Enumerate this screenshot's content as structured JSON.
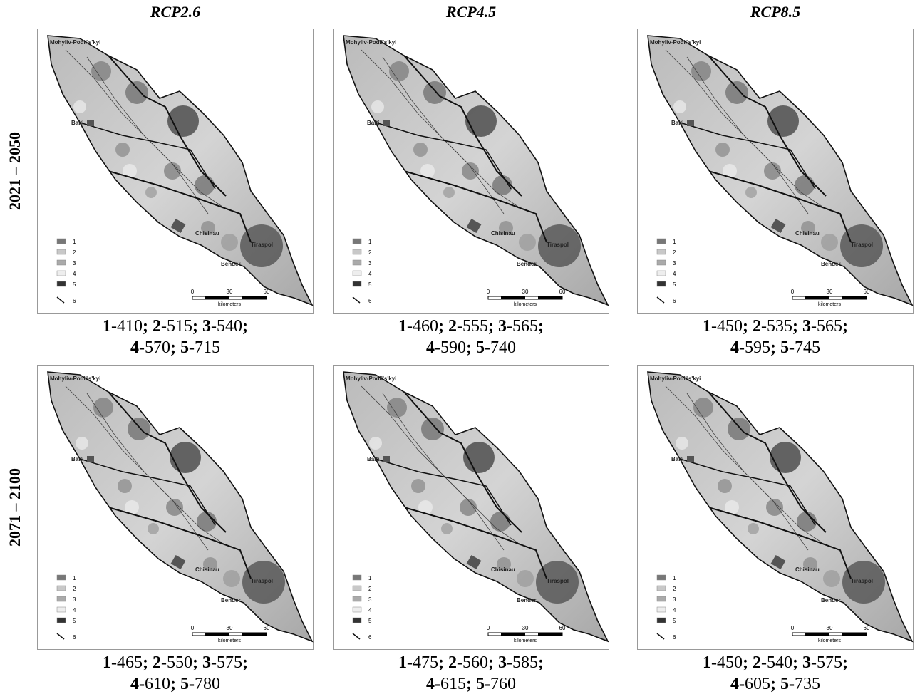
{
  "columns": [
    "RCP2.6",
    "RCP4.5",
    "RCP8.5"
  ],
  "rows": [
    "2021 – 2050",
    "2071 – 2100"
  ],
  "map": {
    "places": [
      "Mohyliv-Podil's'kyi",
      "Balti",
      "Chisinau",
      "Tiraspol",
      "Bender"
    ],
    "legend": [
      "1",
      "2",
      "3",
      "4",
      "5",
      "6"
    ],
    "scale": [
      "0",
      "30",
      "60"
    ],
    "scale_unit": "kilometers"
  },
  "captions": [
    [
      [
        {
          "bold": "1-"
        },
        {
          "text": "410"
        },
        {
          "bold": "; 2-"
        },
        {
          "text": "515"
        },
        {
          "bold": "; 3-"
        },
        {
          "text": "540"
        },
        {
          "bold": ";"
        }
      ],
      [
        {
          "bold": "4-"
        },
        {
          "text": "570"
        },
        {
          "bold": "; 5-"
        },
        {
          "text": "715"
        }
      ]
    ],
    [
      [
        {
          "bold": "1-"
        },
        {
          "text": "460"
        },
        {
          "bold": "; 2-"
        },
        {
          "text": "555"
        },
        {
          "bold": "; 3-"
        },
        {
          "text": "565"
        },
        {
          "bold": ";"
        }
      ],
      [
        {
          "bold": "4-"
        },
        {
          "text": "590"
        },
        {
          "bold": "; 5-"
        },
        {
          "text": "740"
        }
      ]
    ],
    [
      [
        {
          "bold": "1-"
        },
        {
          "text": "450"
        },
        {
          "bold": "; 2-"
        },
        {
          "text": "535"
        },
        {
          "bold": "; 3-"
        },
        {
          "text": "565"
        },
        {
          "bold": ";"
        }
      ],
      [
        {
          "bold": "4-"
        },
        {
          "text": "595"
        },
        {
          "bold": "; 5-"
        },
        {
          "text": "745"
        }
      ]
    ],
    [
      [
        {
          "bold": "1-"
        },
        {
          "text": "465"
        },
        {
          "bold": "; 2-"
        },
        {
          "text": "550"
        },
        {
          "bold": "; 3-"
        },
        {
          "text": "575"
        },
        {
          "bold": ";"
        }
      ],
      [
        {
          "bold": "4-"
        },
        {
          "text": "610"
        },
        {
          "bold": "; 5-"
        },
        {
          "text": "780"
        }
      ]
    ],
    [
      [
        {
          "bold": "1-"
        },
        {
          "text": "475"
        },
        {
          "bold": "; 2-"
        },
        {
          "text": "560"
        },
        {
          "bold": "; 3-"
        },
        {
          "text": "585"
        },
        {
          "bold": ";"
        }
      ],
      [
        {
          "bold": "4-"
        },
        {
          "text": "615"
        },
        {
          "bold": "; 5-"
        },
        {
          "text": "760"
        }
      ]
    ],
    [
      [
        {
          "bold": "1-"
        },
        {
          "text": "450"
        },
        {
          "bold": "; 2-"
        },
        {
          "text": "540"
        },
        {
          "bold": "; 3-"
        },
        {
          "text": "575"
        },
        {
          "bold": ";"
        }
      ],
      [
        {
          "bold": "4-"
        },
        {
          "text": "605"
        },
        {
          "bold": "; 5-"
        },
        {
          "text": "735"
        }
      ]
    ]
  ]
}
